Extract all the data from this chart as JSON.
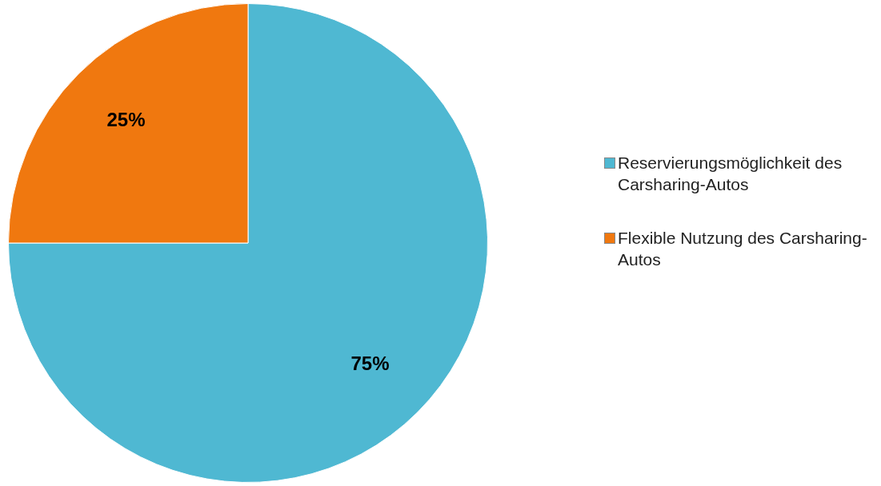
{
  "chart_data": {
    "type": "pie",
    "categories": [
      "Reservierungsmöglichkeit des Carsharing-Autos",
      "Flexible Nutzung des Carsharing-Autos"
    ],
    "values": [
      75,
      25
    ],
    "colors": [
      "#4fb8d2",
      "#f0780f"
    ],
    "legend": "right",
    "value_labels": [
      "75%",
      "25%"
    ]
  }
}
